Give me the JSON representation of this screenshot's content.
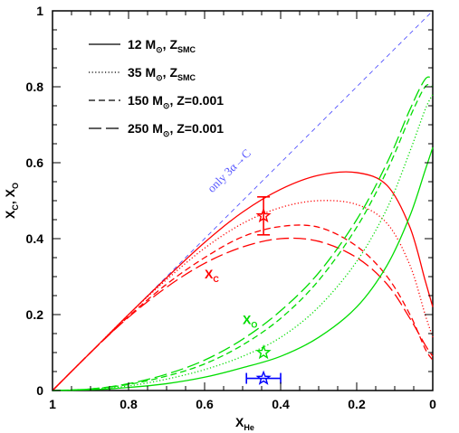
{
  "chart_data": {
    "type": "line",
    "xlabel": {
      "main": "X",
      "sub": "He"
    },
    "ylabel": {
      "a": "X",
      "a_sub": "C",
      "sep": ", X",
      "b_sub": "O"
    },
    "xlim": [
      1,
      0
    ],
    "ylim": [
      0,
      1
    ],
    "x_ticks": [
      {
        "v": 1,
        "label": "1"
      },
      {
        "v": 0.8,
        "label": "0.8"
      },
      {
        "v": 0.6,
        "label": "0.6"
      },
      {
        "v": 0.4,
        "label": "0.4"
      },
      {
        "v": 0.2,
        "label": "0.2"
      },
      {
        "v": 0,
        "label": "0"
      }
    ],
    "y_ticks": [
      {
        "v": 0,
        "label": "0"
      },
      {
        "v": 0.2,
        "label": "0.2"
      },
      {
        "v": 0.4,
        "label": "0.4"
      },
      {
        "v": 0.6,
        "label": "0.6"
      },
      {
        "v": 0.8,
        "label": "0.8"
      },
      {
        "v": 1,
        "label": "1"
      }
    ],
    "legend": [
      {
        "style": "solid",
        "text": "12 M",
        "sym": "⊙",
        "rest": ", Z",
        "sub": "SMC",
        "tail": ""
      },
      {
        "style": "dotted",
        "text": "35 M",
        "sym": "⊙",
        "rest": ", Z",
        "sub": "SMC",
        "tail": ""
      },
      {
        "style": "short-dash",
        "text": "150 M",
        "sym": "⊙",
        "rest": ", Z=0.001",
        "sub": "",
        "tail": ""
      },
      {
        "style": "long-dash",
        "text": "250 M",
        "sym": "⊙",
        "rest": ", Z=0.001",
        "sub": "",
        "tail": ""
      }
    ],
    "reference_line": {
      "label": "only 3α→C",
      "color": "#5555ff",
      "from": [
        1,
        0
      ],
      "to": [
        0,
        1
      ]
    },
    "colors": {
      "carbon": "#ff0000",
      "oxygen": "#00dd00",
      "observation": "#0000ff"
    },
    "series": [
      {
        "species": "C",
        "style": "solid",
        "x": [
          1,
          0.9,
          0.8,
          0.7,
          0.6,
          0.5,
          0.4,
          0.3,
          0.2,
          0.12,
          0.06,
          0.02,
          0
        ],
        "y": [
          0,
          0.1,
          0.2,
          0.297,
          0.39,
          0.47,
          0.53,
          0.567,
          0.574,
          0.54,
          0.43,
          0.29,
          0.22
        ]
      },
      {
        "species": "C",
        "style": "dotted",
        "x": [
          1,
          0.9,
          0.8,
          0.7,
          0.6,
          0.5,
          0.4,
          0.3,
          0.2,
          0.12,
          0.06,
          0.02,
          0
        ],
        "y": [
          0,
          0.1,
          0.2,
          0.292,
          0.375,
          0.44,
          0.482,
          0.5,
          0.49,
          0.44,
          0.33,
          0.2,
          0.14
        ]
      },
      {
        "species": "C",
        "style": "short-dash",
        "x": [
          1,
          0.9,
          0.8,
          0.7,
          0.6,
          0.5,
          0.4,
          0.3,
          0.2,
          0.12,
          0.06,
          0.02,
          0
        ],
        "y": [
          0,
          0.1,
          0.195,
          0.28,
          0.35,
          0.405,
          0.432,
          0.43,
          0.38,
          0.3,
          0.2,
          0.11,
          0.08
        ]
      },
      {
        "species": "C",
        "style": "long-dash",
        "x": [
          1,
          0.9,
          0.8,
          0.7,
          0.6,
          0.5,
          0.4,
          0.3,
          0.2,
          0.12,
          0.06,
          0.02,
          0
        ],
        "y": [
          0,
          0.1,
          0.193,
          0.272,
          0.335,
          0.378,
          0.4,
          0.393,
          0.35,
          0.28,
          0.19,
          0.12,
          0.09
        ]
      },
      {
        "species": "O",
        "style": "solid",
        "x": [
          1,
          0.9,
          0.8,
          0.7,
          0.6,
          0.5,
          0.4,
          0.3,
          0.2,
          0.12,
          0.06,
          0.02,
          0
        ],
        "y": [
          0,
          0.002,
          0.008,
          0.018,
          0.035,
          0.06,
          0.09,
          0.14,
          0.22,
          0.33,
          0.46,
          0.58,
          0.64
        ]
      },
      {
        "species": "O",
        "style": "dotted",
        "x": [
          1,
          0.9,
          0.8,
          0.7,
          0.6,
          0.5,
          0.4,
          0.3,
          0.2,
          0.12,
          0.06,
          0.02,
          0
        ],
        "y": [
          0,
          0.003,
          0.012,
          0.03,
          0.055,
          0.09,
          0.14,
          0.22,
          0.34,
          0.48,
          0.63,
          0.74,
          0.78
        ]
      },
      {
        "species": "O",
        "style": "short-dash",
        "x": [
          1,
          0.9,
          0.8,
          0.7,
          0.6,
          0.5,
          0.4,
          0.3,
          0.2,
          0.12,
          0.06,
          0.02,
          0
        ],
        "y": [
          0,
          0.004,
          0.016,
          0.038,
          0.07,
          0.12,
          0.19,
          0.29,
          0.43,
          0.58,
          0.72,
          0.8,
          0.8
        ]
      },
      {
        "species": "O",
        "style": "long-dash",
        "x": [
          1,
          0.9,
          0.8,
          0.7,
          0.6,
          0.5,
          0.4,
          0.3,
          0.2,
          0.12,
          0.06,
          0.02,
          0
        ],
        "y": [
          0,
          0.004,
          0.018,
          0.043,
          0.08,
          0.135,
          0.21,
          0.31,
          0.45,
          0.6,
          0.74,
          0.82,
          0.82
        ]
      }
    ],
    "observations": [
      {
        "name": "carbon-observation",
        "x": 0.445,
        "y": 0.46,
        "color": "#ff0000",
        "xerr": null,
        "yerr": [
          0.41,
          0.51
        ]
      },
      {
        "name": "oxygen-observation",
        "x": 0.445,
        "y": 0.1,
        "color": "#00dd00",
        "xerr": null,
        "yerr": null
      },
      {
        "name": "helium-observation",
        "x": 0.445,
        "y": 0.032,
        "color": "#0000ff",
        "xerr": [
          0.4,
          0.49
        ],
        "yerr": null
      }
    ],
    "annotations": [
      {
        "name": "xc-annotation",
        "main": "X",
        "sub": "C",
        "color": "#ff0000",
        "x": 0.6,
        "y": 0.295
      },
      {
        "name": "xo-annotation",
        "main": "X",
        "sub": "O",
        "color": "#00dd00",
        "x": 0.5,
        "y": 0.175
      }
    ]
  }
}
